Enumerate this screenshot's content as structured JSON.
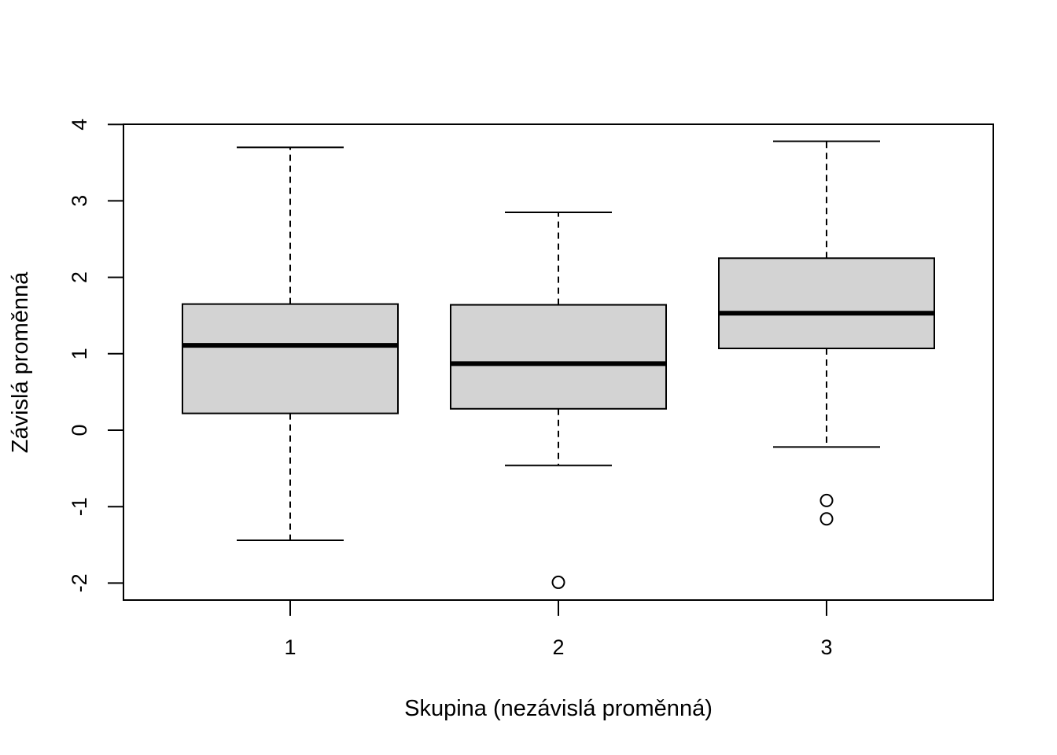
{
  "chart_data": {
    "type": "boxplot",
    "title": "",
    "xlabel": "Skupina (nezávislá proměnná)",
    "ylabel": "Závislá proměnná",
    "ylim": [
      -2.22,
      4.0
    ],
    "yticks": [
      -2,
      -1,
      0,
      1,
      2,
      3,
      4
    ],
    "ytick_labels": [
      "-2",
      "-1",
      "0",
      "1",
      "2",
      "3",
      "4"
    ],
    "categories": [
      "1",
      "2",
      "3"
    ],
    "grid": false,
    "box_fill": "#d3d3d3",
    "boxes": [
      {
        "group": "1",
        "whisker_low": -1.44,
        "q1": 0.22,
        "median": 1.11,
        "q3": 1.65,
        "whisker_high": 3.7,
        "outliers": []
      },
      {
        "group": "2",
        "whisker_low": -0.46,
        "q1": 0.28,
        "median": 0.87,
        "q3": 1.64,
        "whisker_high": 2.85,
        "outliers": [
          -1.99
        ]
      },
      {
        "group": "3",
        "whisker_low": -0.22,
        "q1": 1.07,
        "median": 1.53,
        "q3": 2.25,
        "whisker_high": 3.78,
        "outliers": [
          -0.92,
          -1.16
        ]
      }
    ]
  }
}
